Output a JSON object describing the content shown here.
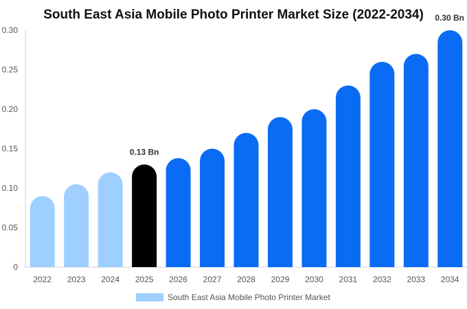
{
  "chart_data": {
    "type": "bar",
    "title": "South East Asia Mobile Photo Printer Market Size (2022-2034)",
    "xlabel": "",
    "ylabel": "",
    "categories": [
      "2022",
      "2023",
      "2024",
      "2025",
      "2026",
      "2027",
      "2028",
      "2029",
      "2030",
      "2031",
      "2032",
      "2033",
      "2034"
    ],
    "series": [
      {
        "name": "South East Asia Mobile Photo Printer Market",
        "values": [
          0.09,
          0.105,
          0.12,
          0.13,
          0.138,
          0.15,
          0.17,
          0.19,
          0.2,
          0.23,
          0.26,
          0.27,
          0.3
        ]
      }
    ],
    "ylim": [
      0,
      0.3
    ],
    "yticks": [
      "0",
      "0.05",
      "0.10",
      "0.15",
      "0.20",
      "0.25",
      "0.30"
    ],
    "data_labels": [
      {
        "category": "2025",
        "text": "0.13 Bn"
      },
      {
        "category": "2034",
        "text": "0.30 Bn"
      }
    ],
    "grid": false,
    "legend_position": "bottom",
    "colors": {
      "historic": "#9ecfff",
      "current": "#000000",
      "forecast": "#0a6cf5",
      "legend_swatch": "#9ecfff"
    },
    "bar_color_groups": [
      "historic",
      "historic",
      "historic",
      "current",
      "forecast",
      "forecast",
      "forecast",
      "forecast",
      "forecast",
      "forecast",
      "forecast",
      "forecast",
      "forecast"
    ]
  }
}
